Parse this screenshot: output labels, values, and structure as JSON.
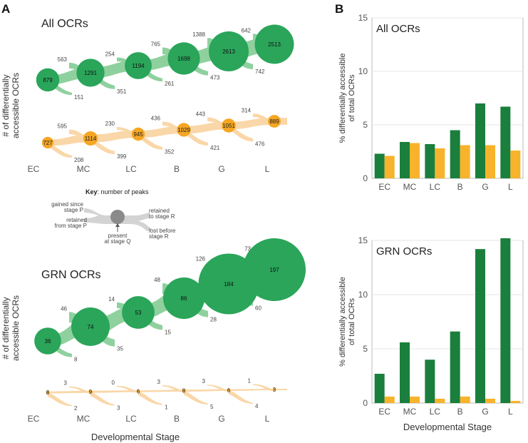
{
  "panels": {
    "a": "A",
    "b": "B"
  },
  "stages": [
    "EC",
    "MC",
    "LC",
    "B",
    "G",
    "L"
  ],
  "colors": {
    "diff_green": "#2aa55a",
    "flow_green": "#8fd19e",
    "diff_orange": "#f5a623",
    "flow_orange": "#fad7a8",
    "bar_green": "#1a7f3c",
    "bar_orange": "#f7b32b",
    "key_gray": "#d0d0d0",
    "key_dark": "#888888"
  },
  "chart_data": [
    {
      "type": "flow",
      "title": "All OCRs",
      "ylabel": "# of differentially accessible OCRs",
      "series": [
        {
          "name": "",
          "present": [
            879,
            1291,
            1194,
            1698,
            2613,
            2513
          ],
          "gained": [
            563,
            254,
            765,
            1388,
            642
          ],
          "lost": [
            151,
            351,
            261,
            473,
            742
          ]
        },
        {
          "name": "",
          "present": [
            727,
            1114,
            945,
            1029,
            1051,
            889
          ],
          "gained": [
            595,
            230,
            436,
            443,
            314
          ],
          "lost": [
            208,
            399,
            352,
            421,
            476
          ]
        }
      ]
    },
    {
      "type": "flow",
      "title": "GRN OCRs",
      "ylabel": "# of differentially accessible OCRs",
      "xlabel": "Developmental Stage",
      "series": [
        {
          "name": "",
          "present": [
            36,
            74,
            53,
            86,
            184,
            197
          ],
          "gained": [
            46,
            14,
            48,
            126,
            73
          ],
          "lost": [
            8,
            35,
            15,
            28,
            60
          ]
        },
        {
          "name": "",
          "present": [
            8,
            9,
            6,
            8,
            6,
            3
          ],
          "gained": [
            3,
            0,
            3,
            3,
            1
          ],
          "lost": [
            2,
            3,
            1,
            5,
            4
          ]
        }
      ]
    },
    {
      "type": "bar",
      "title": "All OCRs",
      "ylabel": "% differentially accessible of total OCRs",
      "categories": [
        "EC",
        "MC",
        "LC",
        "B",
        "G",
        "L"
      ],
      "ylim": [
        0,
        15
      ],
      "yticks": [
        0,
        5,
        10,
        15
      ],
      "series": [
        {
          "values": [
            2.3,
            3.4,
            3.2,
            4.5,
            7.0,
            6.7
          ]
        },
        {
          "values": [
            2.1,
            3.3,
            2.8,
            3.1,
            3.1,
            2.6
          ]
        }
      ]
    },
    {
      "type": "bar",
      "title": "GRN OCRs",
      "ylabel": "% differentially accessible of total OCRs",
      "xlabel": "Developmental Stage",
      "categories": [
        "EC",
        "MC",
        "LC",
        "B",
        "G",
        "L"
      ],
      "ylim": [
        0,
        15
      ],
      "yticks": [
        0,
        5,
        10,
        15
      ],
      "series": [
        {
          "values": [
            2.7,
            5.6,
            4.0,
            6.6,
            14.2,
            15.2
          ]
        },
        {
          "values": [
            0.6,
            0.6,
            0.4,
            0.6,
            0.4,
            0.2
          ]
        }
      ]
    }
  ],
  "key": {
    "title": "Key",
    "subtitle": ": number of peaks",
    "gained_line1": "gained since",
    "gained_line2": "stage P",
    "retained_from_line1": "retained",
    "retained_from_line2": "from stage P",
    "present_line1": "present",
    "present_line2": "at stage Q",
    "retained_to_line1": "retained",
    "retained_to_line2": "to stage R",
    "lost_line1": "lost before",
    "lost_line2": "stage R"
  },
  "ylabel_a_line1": "# of differentially",
  "ylabel_a_line2": "accessible OCRs",
  "ylabel_b_line1": "% differentially accessible",
  "ylabel_b_line2": "of total OCRs"
}
